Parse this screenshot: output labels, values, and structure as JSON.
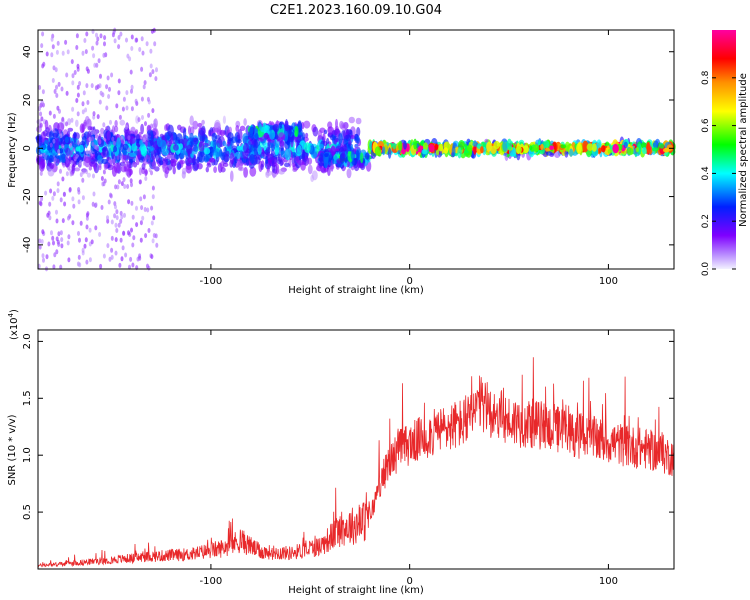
{
  "chart_data": [
    {
      "type": "heatmap",
      "title": "C2E1.2023.160.09.10.G04",
      "xlabel": "Height of straight line (km)",
      "ylabel": "Frequency (Hz)",
      "xlim": [
        -187,
        133
      ],
      "ylim": [
        -50,
        49
      ],
      "xticks": [
        -100,
        0,
        100
      ],
      "xtick_labels": [
        "-100",
        "0",
        "100"
      ],
      "yticks": [
        40,
        20,
        0,
        -20,
        -40
      ],
      "ytick_labels": [
        "40",
        "20",
        "0",
        "-20",
        "-40"
      ],
      "colorbar": {
        "label": "Normalized spectral amplitude",
        "range": [
          0.0,
          1.0
        ],
        "ticks": [
          0.0,
          0.2,
          0.4,
          0.6,
          0.8
        ],
        "tick_labels": [
          "0.0",
          "0.2",
          "0.4",
          "0.6",
          "0.8"
        ],
        "colormap": [
          "#e6e6ff",
          "#7f00ff",
          "#0020ff",
          "#00ffff",
          "#00ff00",
          "#ffff00",
          "#ff0000",
          "#ff00ff"
        ]
      },
      "ridge": {
        "segments": [
          {
            "x_from": -187,
            "x_to": -25,
            "center_hz": 0,
            "spread_hz": 9,
            "amplitude": 0.35
          },
          {
            "x_from": -80,
            "x_to": -55,
            "center_hz": 7,
            "spread_hz": 3,
            "amplitude": 0.45
          },
          {
            "x_from": -45,
            "x_to": -20,
            "center_hz": -4,
            "spread_hz": 3,
            "amplitude": 0.45
          },
          {
            "x_from": -20,
            "x_to": 133,
            "center_hz": 0,
            "spread_hz": 2,
            "amplitude": 0.9
          }
        ]
      }
    },
    {
      "type": "line",
      "xlabel": "Height of straight line (km)",
      "ylabel": "SNR (10 * v/v)",
      "y_multiplier_label": "(x10",
      "y_multiplier_exp": "4",
      "y_multiplier_close": ")",
      "xlim": [
        -187,
        133
      ],
      "ylim": [
        0,
        2.1
      ],
      "xticks": [
        -100,
        0,
        100
      ],
      "xtick_labels": [
        "-100",
        "0",
        "100"
      ],
      "yticks": [
        0.5,
        1.0,
        1.5,
        2.0
      ],
      "ytick_labels": [
        "0.5",
        "1.0",
        "1.5",
        "2.0"
      ],
      "line_color": "#e8282a",
      "series": [
        {
          "name": "SNR",
          "x": [
            -187,
            -170,
            -150,
            -130,
            -110,
            -95,
            -85,
            -75,
            -60,
            -45,
            -35,
            -25,
            -20,
            -15,
            -10,
            -5,
            0,
            10,
            20,
            30,
            35,
            40,
            50,
            60,
            70,
            80,
            90,
            100,
            110,
            120,
            125,
            133
          ],
          "y": [
            0.03,
            0.05,
            0.08,
            0.11,
            0.13,
            0.18,
            0.25,
            0.15,
            0.14,
            0.2,
            0.35,
            0.4,
            0.45,
            0.75,
            0.95,
            1.05,
            1.1,
            1.18,
            1.25,
            1.3,
            1.45,
            1.4,
            1.3,
            1.28,
            1.25,
            1.2,
            1.15,
            1.12,
            1.08,
            1.05,
            1.02,
            0.98
          ]
        }
      ]
    }
  ]
}
